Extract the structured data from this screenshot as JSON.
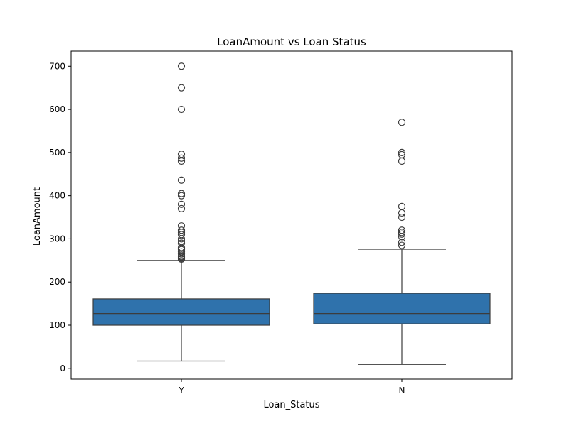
{
  "chart_data": {
    "type": "box",
    "title": "LoanAmount vs Loan Status",
    "xlabel": "Loan_Status",
    "ylabel": "LoanAmount",
    "categories": [
      "Y",
      "N"
    ],
    "ylim": [
      -25,
      735
    ],
    "yticks": [
      0,
      100,
      200,
      300,
      400,
      500,
      600,
      700
    ],
    "grid": false,
    "legend": "none",
    "box_color": "#2f72ac",
    "line_color": "#3c3c3c",
    "boxes": [
      {
        "category": "Y",
        "whisker_low": 17,
        "q1": 100,
        "median": 127,
        "q3": 161,
        "whisker_high": 250,
        "outliers": [
          253,
          255,
          258,
          260,
          265,
          270,
          275,
          278,
          280,
          290,
          295,
          300,
          310,
          315,
          320,
          330,
          370,
          380,
          400,
          405,
          436,
          480,
          487,
          496,
          600,
          650,
          700
        ]
      },
      {
        "category": "N",
        "whisker_low": 9,
        "q1": 103,
        "median": 127,
        "q3": 174,
        "whisker_high": 276,
        "outliers": [
          285,
          292,
          305,
          311,
          315,
          320,
          350,
          360,
          375,
          480,
          495,
          500,
          570
        ]
      }
    ]
  }
}
